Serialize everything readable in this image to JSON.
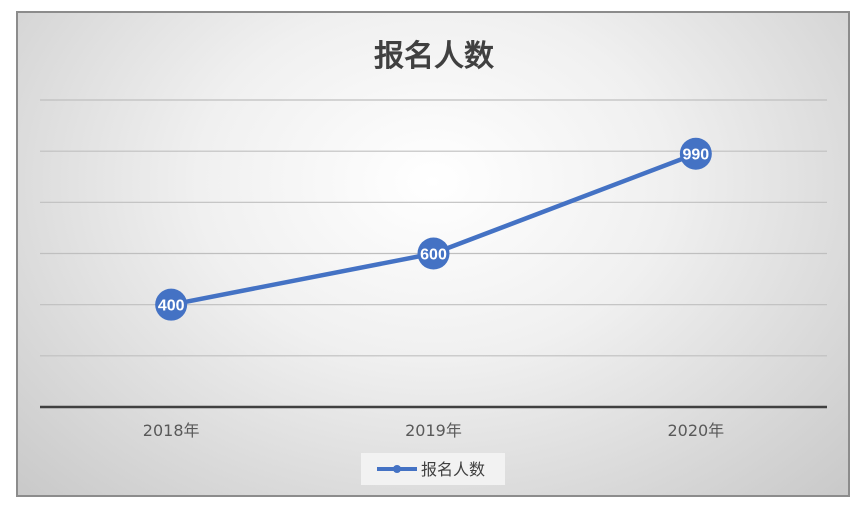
{
  "chart_data": {
    "type": "line",
    "title": "报名人数",
    "categories": [
      "2018年",
      "2019年",
      "2020年"
    ],
    "series": [
      {
        "name": "报名人数",
        "values": [
          400,
          600,
          990
        ]
      }
    ],
    "ylim": [
      0,
      1200
    ],
    "y_gridlines": [
      200,
      400,
      600,
      800,
      1000,
      1200
    ],
    "legend_position": "bottom",
    "grid": true,
    "colors": {
      "series": "#4472c4",
      "gridline": "#bfbfbf",
      "axis": "#404040",
      "label_text": "#ffffff"
    }
  }
}
